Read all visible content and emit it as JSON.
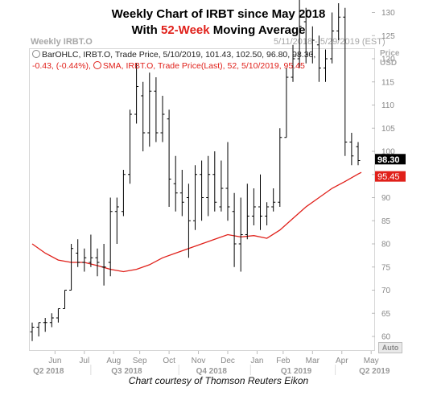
{
  "title_line1": "Weekly Chart of IRBT since May 2018",
  "title_line2_pre": "With ",
  "title_line2_accent": "52-Week",
  "title_line2_post": " Moving Average",
  "panel_title": "Weekly IRBT.O",
  "date_range": "5/11/2018 - 5/29/2019 (EST)",
  "legend_ohlc_line1": "BarOHLC, IRBT.O, Trade Price, 5/10/2019, 101.43, 102.50, 96.80, 98.30,",
  "legend_ohlc_line2": "-0.43, (-0.44%),",
  "legend_sma": "SMA, IRBT.O, Trade Price(Last), 52, 5/10/2019, 95.45",
  "axis_name_line1": "Price",
  "axis_name_line2": "USD",
  "auto_button": "Auto",
  "credit": "Chart courtesy of Thomson Reuters Eikon",
  "colors": {
    "accent": "#e0201a",
    "bars": "#000000",
    "sma": "#e0201a",
    "price_box": "#000000"
  },
  "chart_data": {
    "type": "line",
    "subtype": "weekly OHLC bars with 52-week simple moving average",
    "ylim": [
      57,
      135
    ],
    "y_ticks": [
      60,
      65,
      70,
      75,
      80,
      85,
      90,
      95,
      100,
      105,
      110,
      115,
      120,
      125,
      130
    ],
    "x_month_labels": [
      "Jun",
      "Jul",
      "Aug",
      "Sep",
      "Oct",
      "Nov",
      "Dec",
      "Jan",
      "Feb",
      "Mar",
      "Apr",
      "May"
    ],
    "x_month_week_index": [
      3.5,
      8,
      12.5,
      16.5,
      21,
      25.5,
      30,
      34.5,
      38.5,
      43,
      47.5,
      52
    ],
    "x_quarter_labels": [
      "Q2 2018",
      "Q3 2018",
      "Q4 2018",
      "Q1 2019",
      "Q2 2019"
    ],
    "x_quarter_week_index": [
      2.5,
      14.5,
      27.5,
      40.5,
      52.5
    ],
    "current_price_label": "98.30",
    "current_price": 98.3,
    "sma_label": "95.45",
    "sma_value": 95.45,
    "ohlc": [
      [
        61,
        63,
        59,
        62
      ],
      [
        62,
        63,
        60,
        63
      ],
      [
        63,
        64,
        61,
        63
      ],
      [
        63,
        65,
        62,
        64
      ],
      [
        64,
        66,
        63,
        66
      ],
      [
        66,
        70,
        66,
        70
      ],
      [
        70,
        80,
        70,
        79
      ],
      [
        78,
        81,
        75,
        76
      ],
      [
        76,
        79,
        74,
        77
      ],
      [
        76,
        82,
        75,
        77
      ],
      [
        77,
        79,
        73,
        76
      ],
      [
        75,
        80,
        71,
        75
      ],
      [
        76,
        90,
        73,
        87
      ],
      [
        87,
        90,
        80,
        88
      ],
      [
        87,
        96,
        86,
        95
      ],
      [
        95,
        109,
        93,
        108
      ],
      [
        108,
        119,
        106,
        114
      ],
      [
        112,
        115,
        100,
        104
      ],
      [
        104,
        117,
        101,
        113
      ],
      [
        113,
        116,
        102,
        104
      ],
      [
        104,
        112,
        102,
        108
      ],
      [
        107,
        109,
        88,
        94
      ],
      [
        93,
        99,
        87,
        91
      ],
      [
        91,
        96,
        86,
        89
      ],
      [
        90,
        93,
        77,
        85
      ],
      [
        85,
        97,
        83,
        95
      ],
      [
        95,
        98,
        85,
        90
      ],
      [
        90,
        99,
        86,
        95
      ],
      [
        95,
        100,
        87,
        89
      ],
      [
        88,
        98,
        87,
        92
      ],
      [
        92,
        102,
        85,
        88
      ],
      [
        87,
        91,
        75,
        80
      ],
      [
        80,
        90,
        74,
        82
      ],
      [
        82,
        93,
        81,
        86
      ],
      [
        86,
        92,
        84,
        88
      ],
      [
        88,
        95,
        83,
        86
      ],
      [
        86,
        89,
        84,
        88
      ],
      [
        88,
        92,
        87,
        89
      ],
      [
        89,
        105,
        88,
        103
      ],
      [
        103,
        118,
        103,
        116
      ],
      [
        116,
        123,
        115,
        120
      ],
      [
        120,
        133,
        118,
        127
      ],
      [
        128,
        131,
        119,
        121
      ],
      [
        121,
        127,
        119,
        124
      ],
      [
        123,
        125,
        115,
        118
      ],
      [
        118,
        122,
        115,
        120
      ],
      [
        120,
        130,
        119,
        126
      ],
      [
        126,
        132,
        124,
        129
      ],
      [
        129,
        131,
        99,
        102
      ],
      [
        102,
        104,
        97,
        99
      ],
      [
        101,
        102,
        97,
        98
      ]
    ],
    "sma": [
      [
        0,
        80
      ],
      [
        2,
        78
      ],
      [
        4,
        76.5
      ],
      [
        6,
        76
      ],
      [
        8,
        76
      ],
      [
        10,
        75.3
      ],
      [
        12,
        74.5
      ],
      [
        14,
        74
      ],
      [
        16,
        74.5
      ],
      [
        18,
        75.5
      ],
      [
        20,
        77
      ],
      [
        22,
        78
      ],
      [
        24,
        79
      ],
      [
        26,
        80
      ],
      [
        28,
        81
      ],
      [
        30,
        82
      ],
      [
        32,
        81.5
      ],
      [
        34,
        81.8
      ],
      [
        36,
        81.2
      ],
      [
        38,
        83
      ],
      [
        40,
        85.5
      ],
      [
        42,
        88
      ],
      [
        44,
        90
      ],
      [
        46,
        92
      ],
      [
        48,
        93.5
      ],
      [
        50,
        95.1
      ],
      [
        50.5,
        95.45
      ]
    ]
  }
}
